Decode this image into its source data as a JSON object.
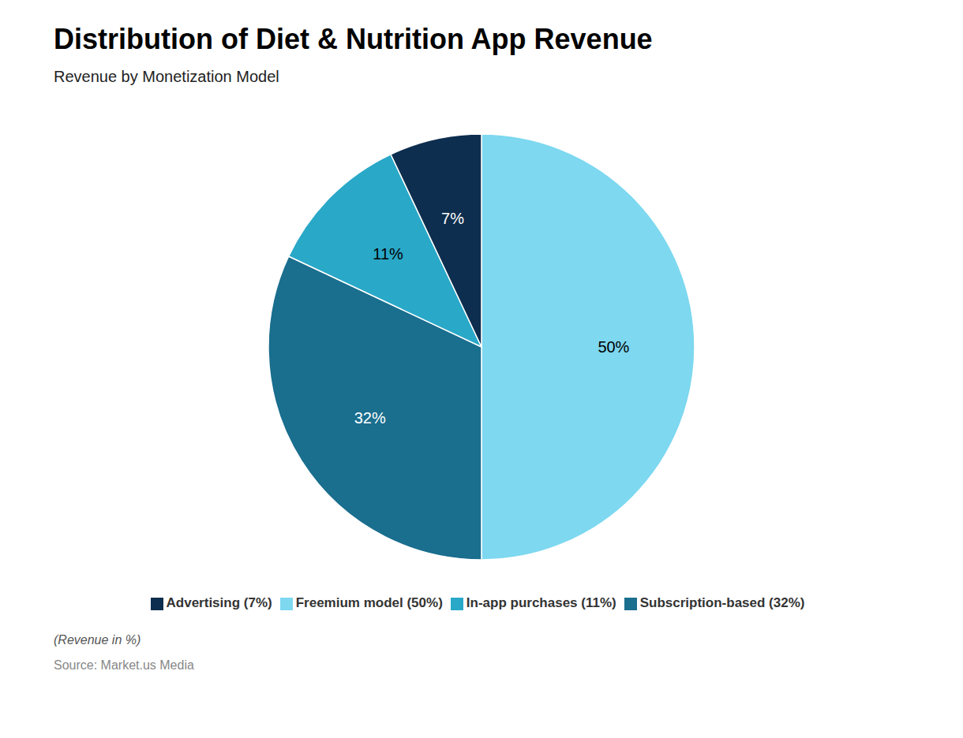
{
  "chart_data": {
    "type": "pie",
    "title": "Distribution of Diet & Nutrition App Revenue",
    "subtitle": "Revenue by Monetization Model",
    "categories": [
      "Freemium model (50%)",
      "Subscription-based (32%)",
      "In-app purchases (11%)",
      "Advertising (7%)"
    ],
    "values": [
      50,
      32,
      11,
      7
    ],
    "value_labels": [
      "50%",
      "32%",
      "11%",
      "7%"
    ],
    "colors": [
      "#7DD8F0",
      "#1A6E8E",
      "#29A8C8",
      "#0D2E4E"
    ],
    "data_labels": true,
    "legend": "bottom",
    "annotations": [
      "(Revenue in %)",
      "Source: Market.us Media"
    ]
  }
}
